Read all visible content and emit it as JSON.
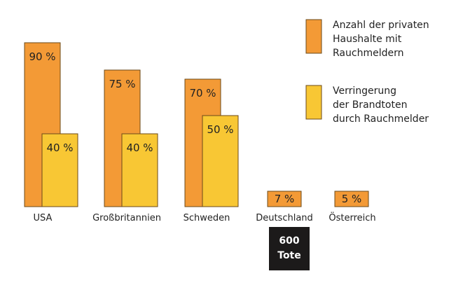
{
  "chart_data": {
    "type": "bar",
    "categories": [
      "USA",
      "Großbritannien",
      "Schweden",
      "Deutschland",
      "Österreich"
    ],
    "series": [
      {
        "name": "Anzahl der privaten Haushalte mit Rauchmeldern",
        "values": [
          90,
          75,
          70,
          7,
          5
        ],
        "labels": [
          "90 %",
          "75 %",
          "70 %",
          "7 %",
          "5 %"
        ],
        "color": "#f39a36",
        "legend_lines": [
          "Anzahl der privaten",
          "Haushalte mit",
          "Rauchmeldern"
        ]
      },
      {
        "name": "Verringerung der Brandtoten durch Rauchmelder",
        "values": [
          40,
          40,
          50,
          null,
          null
        ],
        "labels": [
          "40 %",
          "40 %",
          "50 %",
          "",
          ""
        ],
        "color": "#f8c734",
        "legend_lines": [
          "Verringerung",
          "der Brandtoten",
          "durch Rauchmelder"
        ]
      }
    ],
    "annotation": {
      "lines": [
        "600",
        "Tote"
      ],
      "category": "Deutschland",
      "background": "#1c1a1a"
    },
    "ylim": [
      0,
      100
    ],
    "grid": false,
    "legend_position": "top-right"
  }
}
